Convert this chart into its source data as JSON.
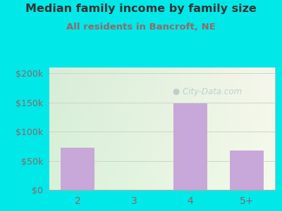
{
  "categories": [
    "2",
    "3",
    "4",
    "5+"
  ],
  "values": [
    72000,
    0,
    148000,
    67000
  ],
  "bar_color": "#c8a8d8",
  "title": "Median family income by family size",
  "subtitle": "All residents in Bancroft, NE",
  "title_color": "#333333",
  "subtitle_color": "#996666",
  "bg_color": "#00e8e8",
  "yticks": [
    0,
    50000,
    100000,
    150000,
    200000
  ],
  "ytick_labels": [
    "$0",
    "$50k",
    "$100k",
    "$150k",
    "$200k"
  ],
  "ylim": [
    0,
    210000
  ],
  "tick_color": "#886666",
  "grid_color": "#c8d8c8",
  "watermark": "City-Data.com",
  "watermark_color": "#b8c8c8"
}
